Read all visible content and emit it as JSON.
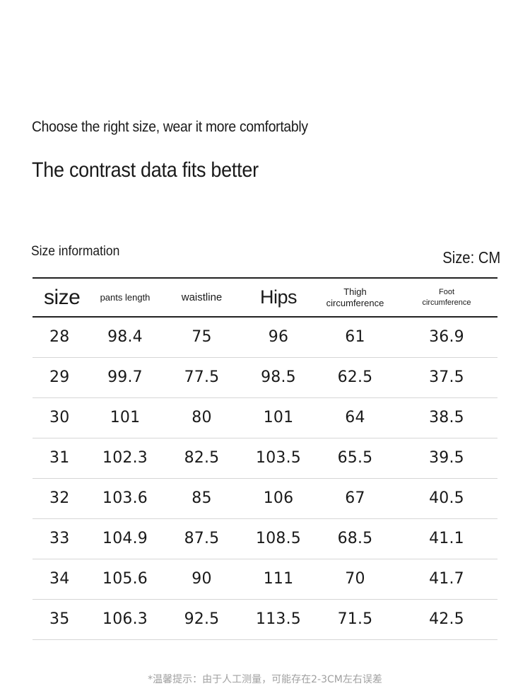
{
  "header": {
    "line1": "Choose the right size, wear it more comfortably",
    "line2": "The contrast data fits better"
  },
  "section": {
    "label": "Size information",
    "unit": "Size: CM"
  },
  "table": {
    "headers": [
      {
        "lines": [
          "size"
        ]
      },
      {
        "lines": [
          "pants length"
        ]
      },
      {
        "lines": [
          "waistline"
        ]
      },
      {
        "lines": [
          "Hips"
        ]
      },
      {
        "lines": [
          "Thigh",
          "circumference"
        ]
      },
      {
        "lines": [
          "Foot",
          "circumference"
        ]
      }
    ],
    "rows": [
      [
        "28",
        "98.4",
        "75",
        "96",
        "61",
        "36.9"
      ],
      [
        "29",
        "99.7",
        "77.5",
        "98.5",
        "62.5",
        "37.5"
      ],
      [
        "30",
        "101",
        "80",
        "101",
        "64",
        "38.5"
      ],
      [
        "31",
        "102.3",
        "82.5",
        "103.5",
        "65.5",
        "39.5"
      ],
      [
        "32",
        "103.6",
        "85",
        "106",
        "67",
        "40.5"
      ],
      [
        "33",
        "104.9",
        "87.5",
        "108.5",
        "68.5",
        "41.1"
      ],
      [
        "34",
        "105.6",
        "90",
        "111",
        "70",
        "41.7"
      ],
      [
        "35",
        "106.3",
        "92.5",
        "113.5",
        "71.5",
        "42.5"
      ]
    ]
  },
  "footnote": "*温馨提示：由于人工测量，可能存在2-3CM左右误差"
}
